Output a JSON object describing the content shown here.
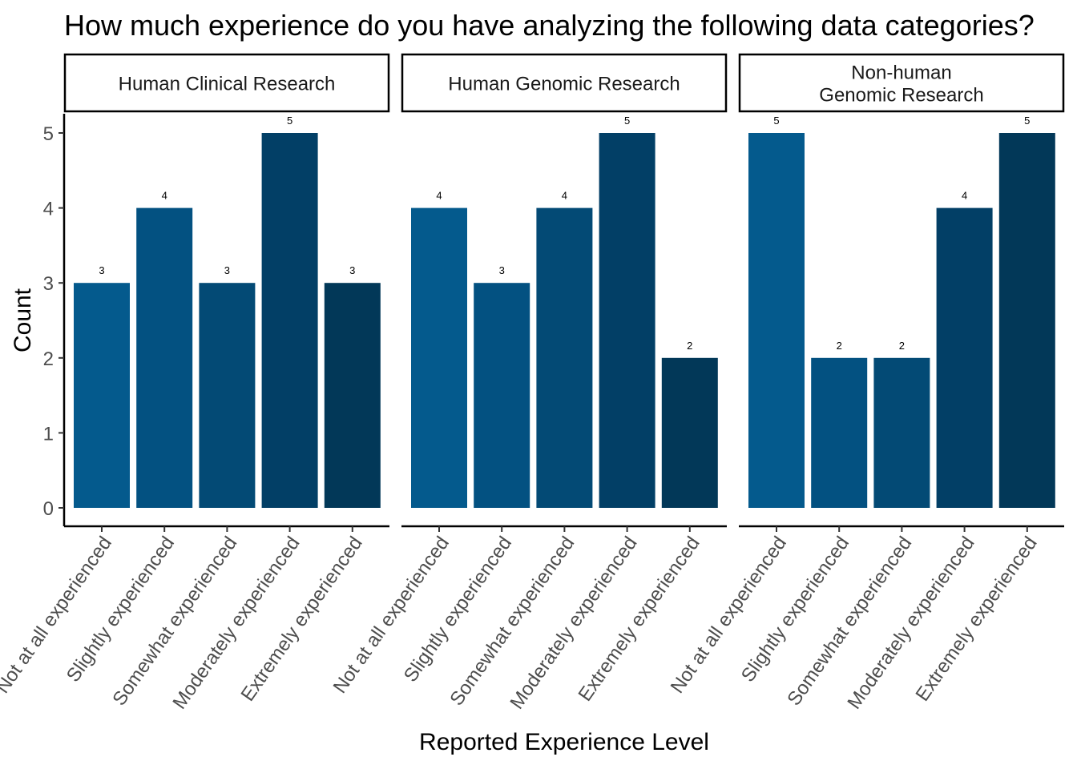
{
  "chart_data": {
    "type": "bar",
    "title": "How much experience do you have analyzing the following data categories?",
    "xlabel": "Reported Experience Level",
    "ylabel": "Count",
    "ylim": [
      0,
      5
    ],
    "yticks": [
      0,
      1,
      2,
      3,
      4,
      5
    ],
    "grid": false,
    "categories": [
      "Not at all experienced",
      "Slightly experienced",
      "Somewhat experienced",
      "Moderately experienced",
      "Extremely experienced"
    ],
    "category_colors": [
      "#045a8d",
      "#035181",
      "#034a75",
      "#023f66",
      "#023858"
    ],
    "panels": [
      {
        "name": "Human Clinical Research",
        "name_lines": [
          "Human Clinical Research"
        ],
        "values": [
          3,
          4,
          3,
          5,
          3
        ]
      },
      {
        "name": "Human Genomic Research",
        "name_lines": [
          "Human Genomic Research"
        ],
        "values": [
          4,
          3,
          4,
          5,
          2
        ]
      },
      {
        "name": "Non-human Genomic Research",
        "name_lines": [
          "Non-human",
          "Genomic Research"
        ],
        "values": [
          5,
          2,
          2,
          4,
          5
        ]
      }
    ]
  }
}
